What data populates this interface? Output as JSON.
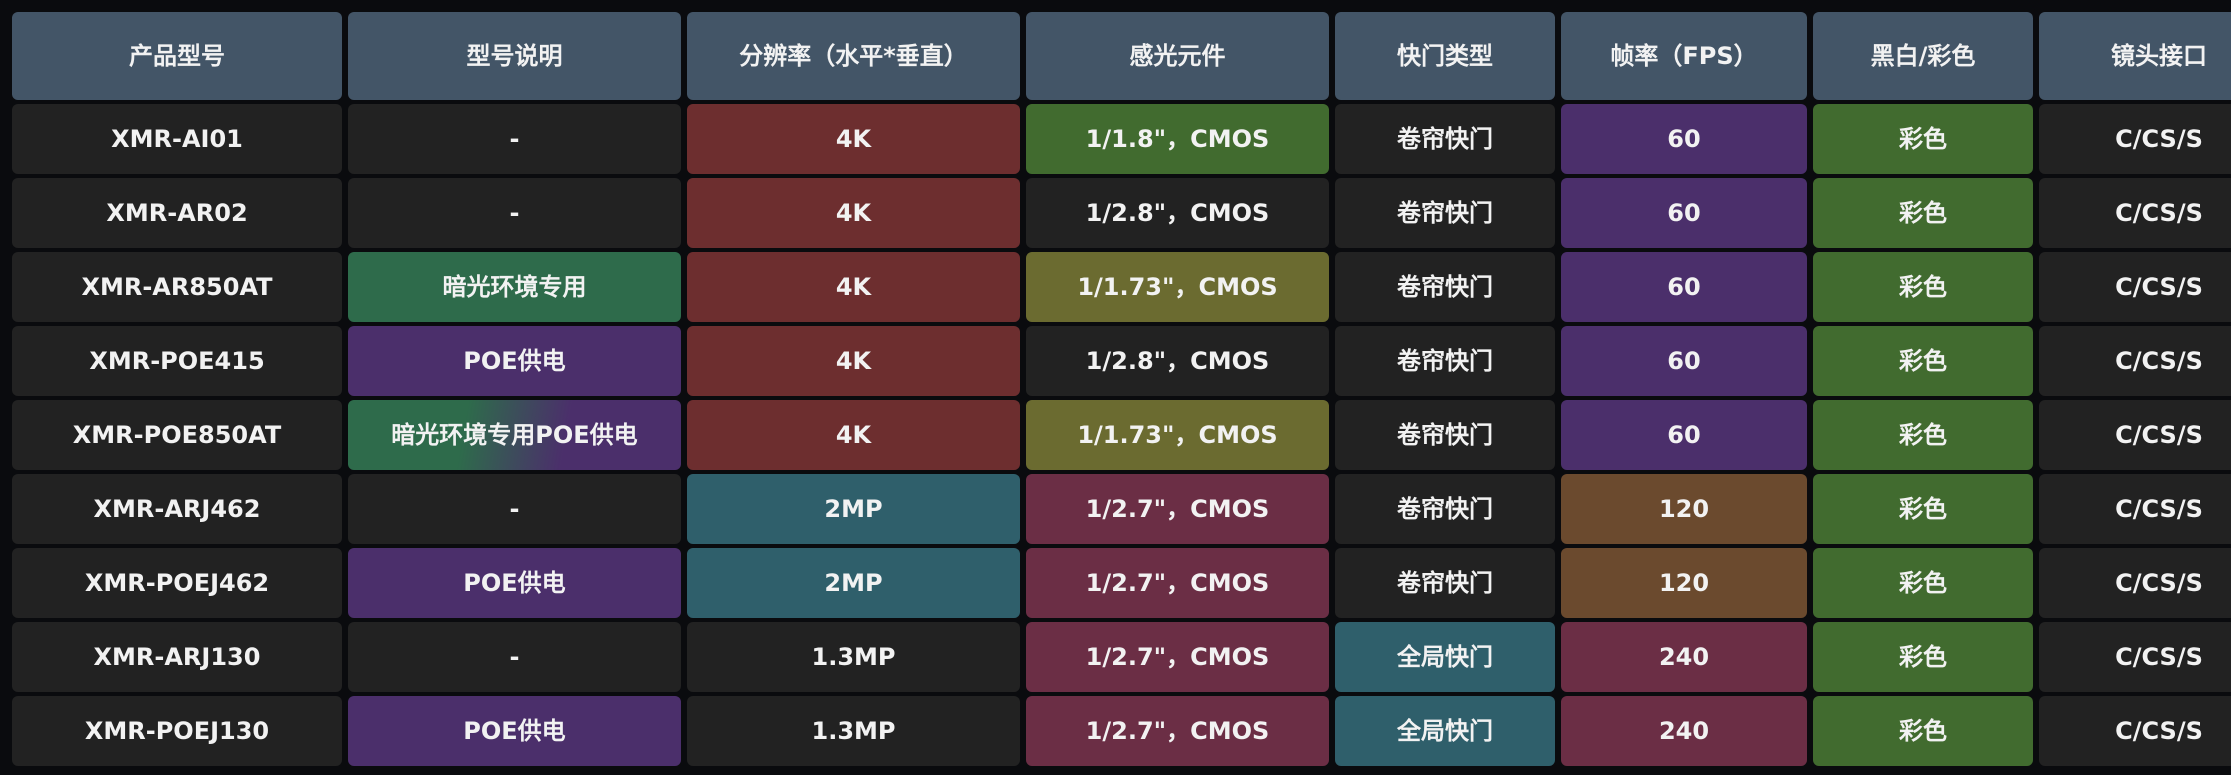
{
  "colors": {
    "background": "#0a0b0e",
    "header": "#435567",
    "dark": "#222222",
    "red": "#6d2e2f",
    "green": "#416b2f",
    "olive": "#6b6b30",
    "purple": "#4b2f6b",
    "teal_green": "#2e6b4b",
    "teal": "#2f5f6b",
    "maroon": "#6b2e45",
    "brown": "#6b4a2e",
    "gradient": "linear-gradient(100deg,#2e6b4b 35%,#4b2f6b 65%)"
  },
  "table": {
    "headers": [
      "产品型号",
      "型号说明",
      "分辨率（水平*垂直）",
      "感光元件",
      "快门类型",
      "帧率（FPS）",
      "黑白/彩色",
      "镜头接口"
    ],
    "rows": [
      {
        "cells": [
          [
            "XMR-AI01",
            "dark"
          ],
          [
            "-",
            "dark"
          ],
          [
            "4K",
            "red"
          ],
          [
            "1/1.8\"，CMOS",
            "green"
          ],
          [
            "卷帘快门",
            "dark"
          ],
          [
            "60",
            "purple"
          ],
          [
            "彩色",
            "green"
          ],
          [
            "C/CS/S",
            "dark"
          ]
        ]
      },
      {
        "cells": [
          [
            "XMR-AR02",
            "dark"
          ],
          [
            "-",
            "dark"
          ],
          [
            "4K",
            "red"
          ],
          [
            "1/2.8\"，CMOS",
            "dark"
          ],
          [
            "卷帘快门",
            "dark"
          ],
          [
            "60",
            "purple"
          ],
          [
            "彩色",
            "green"
          ],
          [
            "C/CS/S",
            "dark"
          ]
        ]
      },
      {
        "cells": [
          [
            "XMR-AR850AT",
            "dark"
          ],
          [
            "暗光环境专用",
            "teal_green"
          ],
          [
            "4K",
            "red"
          ],
          [
            "1/1.73\"，CMOS",
            "olive"
          ],
          [
            "卷帘快门",
            "dark"
          ],
          [
            "60",
            "purple"
          ],
          [
            "彩色",
            "green"
          ],
          [
            "C/CS/S",
            "dark"
          ]
        ]
      },
      {
        "cells": [
          [
            "XMR-POE415",
            "dark"
          ],
          [
            "POE供电",
            "purple"
          ],
          [
            "4K",
            "red"
          ],
          [
            "1/2.8\"，CMOS",
            "dark"
          ],
          [
            "卷帘快门",
            "dark"
          ],
          [
            "60",
            "purple"
          ],
          [
            "彩色",
            "green"
          ],
          [
            "C/CS/S",
            "dark"
          ]
        ]
      },
      {
        "cells": [
          [
            "XMR-POE850AT",
            "dark"
          ],
          [
            "暗光环境专用POE供电",
            "gradient"
          ],
          [
            "4K",
            "red"
          ],
          [
            "1/1.73\"，CMOS",
            "olive"
          ],
          [
            "卷帘快门",
            "dark"
          ],
          [
            "60",
            "purple"
          ],
          [
            "彩色",
            "green"
          ],
          [
            "C/CS/S",
            "dark"
          ]
        ]
      },
      {
        "cells": [
          [
            "XMR-ARJ462",
            "dark"
          ],
          [
            "-",
            "dark"
          ],
          [
            "2MP",
            "teal"
          ],
          [
            "1/2.7\"，CMOS",
            "maroon"
          ],
          [
            "卷帘快门",
            "dark"
          ],
          [
            "120",
            "brown"
          ],
          [
            "彩色",
            "green"
          ],
          [
            "C/CS/S",
            "dark"
          ]
        ]
      },
      {
        "cells": [
          [
            "XMR-POEJ462",
            "dark"
          ],
          [
            "POE供电",
            "purple"
          ],
          [
            "2MP",
            "teal"
          ],
          [
            "1/2.7\"，CMOS",
            "maroon"
          ],
          [
            "卷帘快门",
            "dark"
          ],
          [
            "120",
            "brown"
          ],
          [
            "彩色",
            "green"
          ],
          [
            "C/CS/S",
            "dark"
          ]
        ]
      },
      {
        "cells": [
          [
            "XMR-ARJ130",
            "dark"
          ],
          [
            "-",
            "dark"
          ],
          [
            "1.3MP",
            "dark"
          ],
          [
            "1/2.7\"，CMOS",
            "maroon"
          ],
          [
            "全局快门",
            "teal"
          ],
          [
            "240",
            "maroon"
          ],
          [
            "彩色",
            "green"
          ],
          [
            "C/CS/S",
            "dark"
          ]
        ]
      },
      {
        "cells": [
          [
            "XMR-POEJ130",
            "dark"
          ],
          [
            "POE供电",
            "purple"
          ],
          [
            "1.3MP",
            "dark"
          ],
          [
            "1/2.7\"，CMOS",
            "maroon"
          ],
          [
            "全局快门",
            "teal"
          ],
          [
            "240",
            "maroon"
          ],
          [
            "彩色",
            "green"
          ],
          [
            "C/CS/S",
            "dark"
          ]
        ]
      }
    ]
  }
}
